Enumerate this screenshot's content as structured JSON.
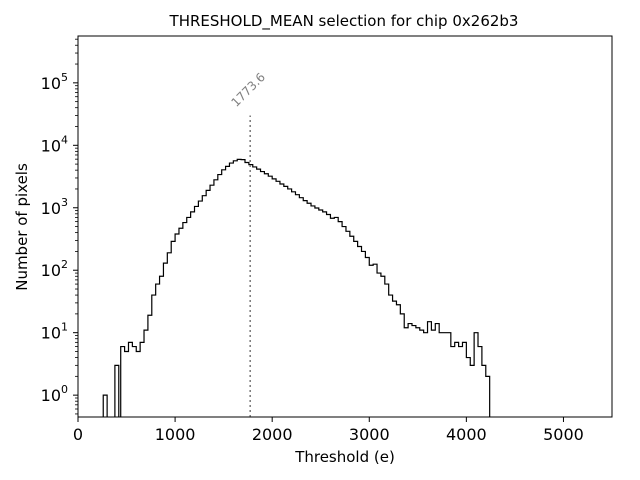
{
  "chart_data": {
    "type": "histogram",
    "title": "THRESHOLD_MEAN selection for chip 0x262b3",
    "xlabel": "Threshold (e)",
    "ylabel": "Number of pixels",
    "xlim": [
      0,
      5500
    ],
    "ylim_log10": [
      -0.35,
      5.75
    ],
    "yscale": "log",
    "x_ticks": [
      {
        "value": 0,
        "label": "0"
      },
      {
        "value": 1000,
        "label": "1000"
      },
      {
        "value": 2000,
        "label": "2000"
      },
      {
        "value": 3000,
        "label": "3000"
      },
      {
        "value": 4000,
        "label": "4000"
      },
      {
        "value": 5000,
        "label": "5000"
      }
    ],
    "y_ticks": [
      {
        "value": 1,
        "base": "10",
        "exp": "0"
      },
      {
        "value": 10,
        "base": "10",
        "exp": "1"
      },
      {
        "value": 100,
        "base": "10",
        "exp": "2"
      },
      {
        "value": 1000,
        "base": "10",
        "exp": "3"
      },
      {
        "value": 10000,
        "base": "10",
        "exp": "4"
      },
      {
        "value": 100000,
        "base": "10",
        "exp": "5"
      }
    ],
    "bin_width": 40,
    "bins": [
      [
        260,
        1
      ],
      [
        380,
        3
      ],
      [
        440,
        6
      ],
      [
        480,
        5
      ],
      [
        520,
        7
      ],
      [
        560,
        6
      ],
      [
        600,
        5
      ],
      [
        640,
        7
      ],
      [
        680,
        11
      ],
      [
        720,
        19
      ],
      [
        760,
        40
      ],
      [
        800,
        60
      ],
      [
        840,
        80
      ],
      [
        880,
        130
      ],
      [
        920,
        190
      ],
      [
        960,
        290
      ],
      [
        1000,
        380
      ],
      [
        1040,
        470
      ],
      [
        1080,
        580
      ],
      [
        1120,
        700
      ],
      [
        1160,
        860
      ],
      [
        1200,
        1050
      ],
      [
        1240,
        1280
      ],
      [
        1280,
        1560
      ],
      [
        1320,
        1900
      ],
      [
        1360,
        2300
      ],
      [
        1400,
        2800
      ],
      [
        1440,
        3400
      ],
      [
        1480,
        4050
      ],
      [
        1520,
        4600
      ],
      [
        1560,
        5200
      ],
      [
        1600,
        5650
      ],
      [
        1640,
        5950
      ],
      [
        1680,
        5900
      ],
      [
        1720,
        5300
      ],
      [
        1760,
        4900
      ],
      [
        1800,
        4500
      ],
      [
        1840,
        4150
      ],
      [
        1880,
        3800
      ],
      [
        1920,
        3500
      ],
      [
        1960,
        3200
      ],
      [
        2000,
        2900
      ],
      [
        2040,
        2650
      ],
      [
        2080,
        2400
      ],
      [
        2120,
        2200
      ],
      [
        2160,
        2000
      ],
      [
        2200,
        1800
      ],
      [
        2240,
        1620
      ],
      [
        2280,
        1450
      ],
      [
        2320,
        1300
      ],
      [
        2360,
        1180
      ],
      [
        2400,
        1070
      ],
      [
        2440,
        990
      ],
      [
        2480,
        920
      ],
      [
        2520,
        860
      ],
      [
        2560,
        780
      ],
      [
        2600,
        680
      ],
      [
        2640,
        700
      ],
      [
        2680,
        600
      ],
      [
        2720,
        500
      ],
      [
        2760,
        420
      ],
      [
        2800,
        350
      ],
      [
        2840,
        290
      ],
      [
        2880,
        240
      ],
      [
        2920,
        200
      ],
      [
        2960,
        160
      ],
      [
        3000,
        120
      ],
      [
        3040,
        125
      ],
      [
        3080,
        90
      ],
      [
        3120,
        80
      ],
      [
        3160,
        60
      ],
      [
        3200,
        40
      ],
      [
        3240,
        32
      ],
      [
        3280,
        28
      ],
      [
        3320,
        20
      ],
      [
        3360,
        12
      ],
      [
        3400,
        14
      ],
      [
        3440,
        13
      ],
      [
        3480,
        12
      ],
      [
        3520,
        11
      ],
      [
        3560,
        10
      ],
      [
        3600,
        15
      ],
      [
        3640,
        11
      ],
      [
        3680,
        14
      ],
      [
        3720,
        10
      ],
      [
        3760,
        10
      ],
      [
        3800,
        10
      ],
      [
        3840,
        6
      ],
      [
        3880,
        7
      ],
      [
        3920,
        6
      ],
      [
        3960,
        7
      ],
      [
        4000,
        4
      ],
      [
        4040,
        3
      ],
      [
        4080,
        10
      ],
      [
        4120,
        6
      ],
      [
        4160,
        3
      ],
      [
        4200,
        2
      ]
    ],
    "annotation": {
      "type": "vline",
      "x": 1773.6,
      "label": "1773.6",
      "style": "dotted",
      "color": "#808080",
      "y_top": 30000
    }
  }
}
